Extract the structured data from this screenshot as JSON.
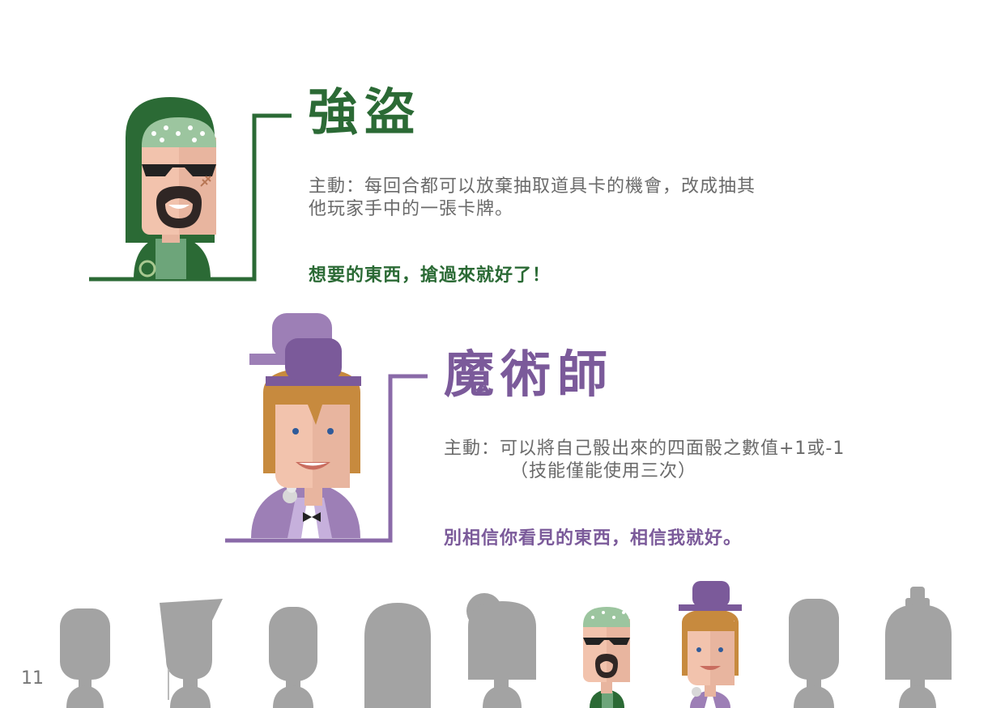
{
  "robber": {
    "title": "強盜",
    "desc_line1": "主動：每回合都可以放棄抽取道具卡的機會，改成抽其",
    "desc_line2": "他玩家手中的一張卡牌。",
    "quote": "想要的東西，搶過來就好了！",
    "color": "#2b6a35"
  },
  "magician": {
    "title": "魔術師",
    "desc_line1": "主動：可以將自己骰出來的四面骰之數值+1或-1",
    "desc_line2": "（技能僅能使用三次）",
    "quote": "別相信你看見的東西，相信我就好。",
    "color": "#7b5a9a"
  },
  "page_number": "11",
  "icons": [
    "robber-avatar-icon",
    "magician-avatar-icon",
    "character-silhouette-icon"
  ]
}
